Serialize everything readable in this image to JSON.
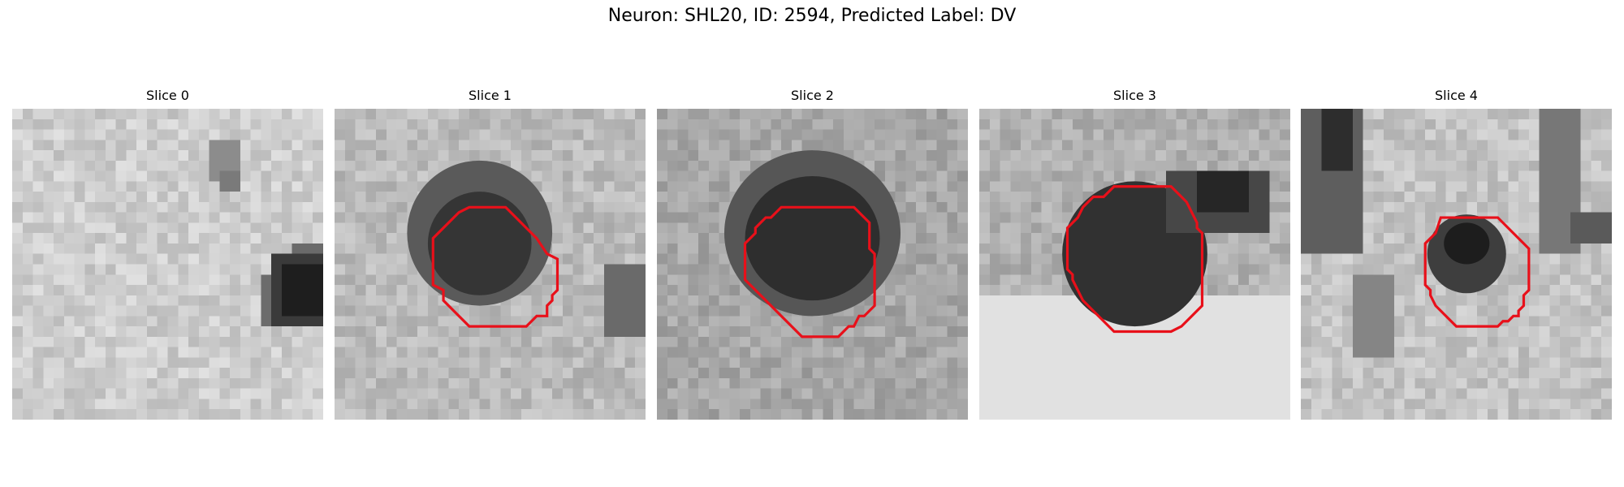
{
  "figure": {
    "title": "Neuron: SHL20, ID: 2594, Predicted Label: DV"
  },
  "colors": {
    "outline": "#e8101a",
    "background": "#ffffff"
  },
  "panels": [
    {
      "title": "Slice 0",
      "image": "grayscale microscopy patch, bright with a dark blob at right edge",
      "has_outline": false
    },
    {
      "title": "Slice 1",
      "image": "grayscale microscopy patch with dark round cell body in center",
      "has_outline": true
    },
    {
      "title": "Slice 2",
      "image": "grayscale microscopy patch with large dark round cell body in center",
      "has_outline": true
    },
    {
      "title": "Slice 3",
      "image": "grayscale microscopy patch with large dark cell body and bright lower region",
      "has_outline": true
    },
    {
      "title": "Slice 4",
      "image": "grayscale microscopy patch with dark streaks and small dark cell in center",
      "has_outline": true
    }
  ]
}
